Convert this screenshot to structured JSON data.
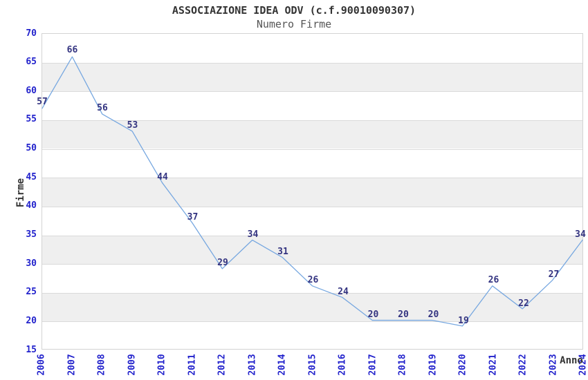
{
  "chart_data": {
    "type": "line",
    "title": "ASSOCIAZIONE IDEA ODV (c.f.90010090307)",
    "subtitle": "Numero Firme",
    "xlabel": "Anno",
    "ylabel": "Firme",
    "categories": [
      "2006",
      "2007",
      "2008",
      "2009",
      "2010",
      "2011",
      "2012",
      "2013",
      "2014",
      "2015",
      "2016",
      "2017",
      "2018",
      "2019",
      "2020",
      "2021",
      "2022",
      "2023",
      "2024"
    ],
    "values": [
      57,
      66,
      56,
      53,
      44,
      37,
      29,
      34,
      31,
      26,
      24,
      20,
      20,
      20,
      19,
      26,
      22,
      27,
      34
    ],
    "ytick_labels": [
      "15",
      "20",
      "25",
      "30",
      "35",
      "40",
      "45",
      "50",
      "55",
      "60",
      "65",
      "70"
    ],
    "ylim": [
      15,
      70
    ],
    "ytick_step": 5,
    "grid": "alternating-horizontal-bands",
    "legend_position": "none",
    "colors": {
      "line": "#76a7e0",
      "tick_label": "#2222cc",
      "point_label": "#333380",
      "band": "#efefef",
      "gridline": "#dadada",
      "plot_border": "#d3d3d3",
      "title": "#333333",
      "subtitle": "#555555",
      "axis_title": "#333333",
      "background": "#ffffff"
    }
  }
}
